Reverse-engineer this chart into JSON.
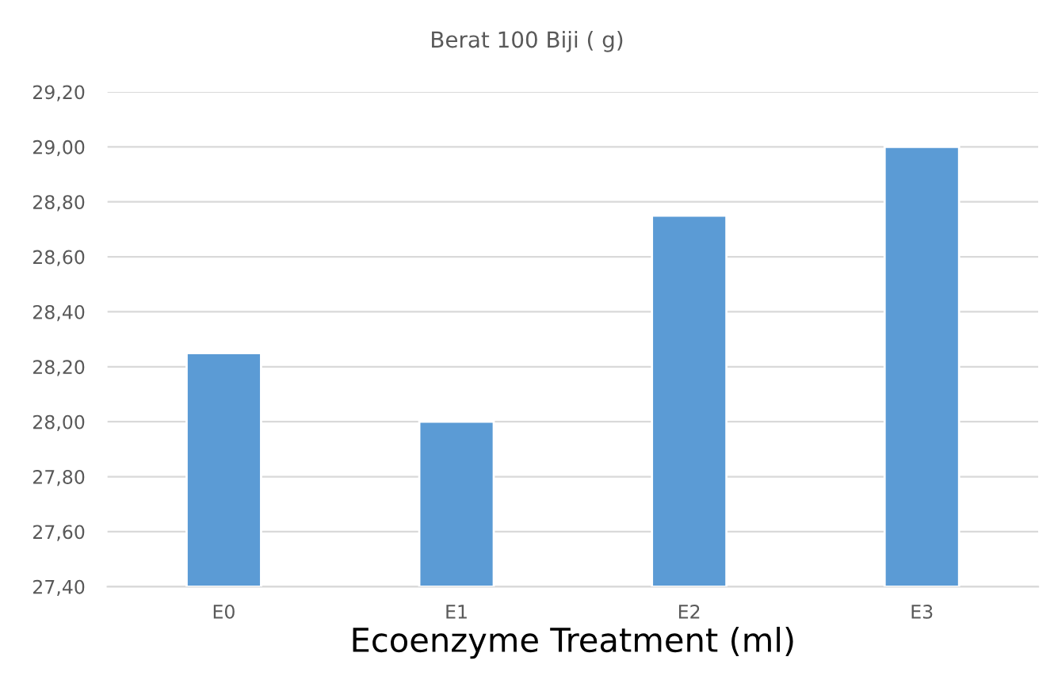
{
  "chart_data": {
    "type": "bar",
    "title": "Berat 100 Biji ( g)",
    "xlabel": "Ecoenzyme Treatment (ml)",
    "categories": [
      "E0",
      "E1",
      "E2",
      "E3"
    ],
    "values": [
      28.25,
      28.0,
      28.75,
      29.0
    ],
    "color": "#5b9bd5",
    "ylim": [
      27.4,
      29.2
    ],
    "yticks": [
      {
        "value": 27.4,
        "label": "27,40"
      },
      {
        "value": 27.6,
        "label": "27,60"
      },
      {
        "value": 27.8,
        "label": "27,80"
      },
      {
        "value": 28.0,
        "label": "28,00"
      },
      {
        "value": 28.2,
        "label": "28,20"
      },
      {
        "value": 28.4,
        "label": "28,40"
      },
      {
        "value": 28.6,
        "label": "28,60"
      },
      {
        "value": 28.8,
        "label": "28,80"
      },
      {
        "value": 29.0,
        "label": "29,00"
      },
      {
        "value": 29.2,
        "label": "29,20"
      }
    ],
    "grid": "y",
    "legend": false
  }
}
